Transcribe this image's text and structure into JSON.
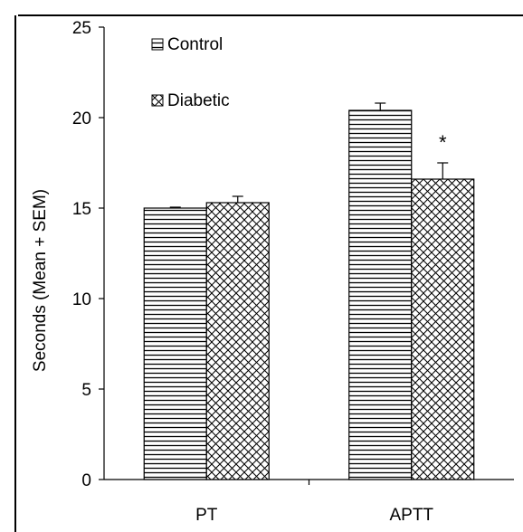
{
  "chart_data": {
    "type": "bar",
    "title": "",
    "xlabel": "",
    "ylabel": "Seconds (Mean + SEM)",
    "ylim": [
      0,
      25
    ],
    "yticks": [
      0,
      5,
      10,
      15,
      20,
      25
    ],
    "categories": [
      "PT",
      "APTT"
    ],
    "series": [
      {
        "name": "Control",
        "pattern": "horizontal-lines",
        "values": [
          15.0,
          20.4
        ],
        "sem": [
          0.05,
          0.4
        ]
      },
      {
        "name": "Diabetic",
        "pattern": "diagonal-crosshatch",
        "values": [
          15.3,
          16.6
        ],
        "sem": [
          0.35,
          0.9
        ]
      }
    ],
    "annotations": [
      {
        "text": "*",
        "category": "APTT",
        "series": "Diabetic"
      }
    ],
    "legend_position": "top-left",
    "grid": false,
    "colors": {
      "bar_fill": "#ffffff",
      "bar_stroke": "#000000",
      "pattern": "#000000",
      "axis": "#000000"
    }
  }
}
